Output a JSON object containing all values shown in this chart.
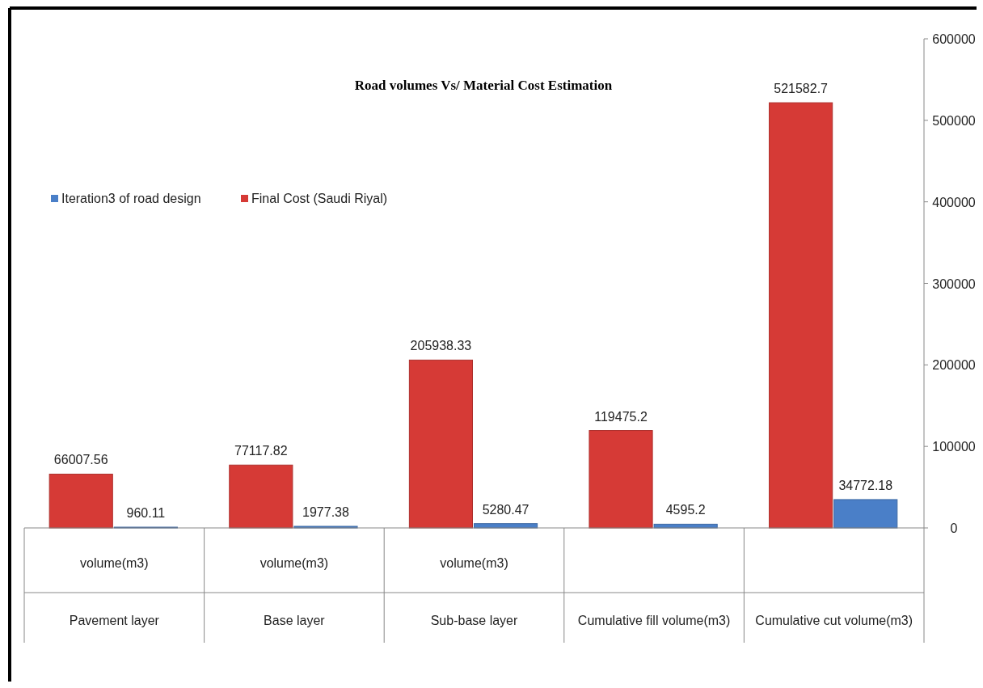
{
  "chart_data": {
    "type": "bar",
    "title": "Road volumes Vs/  Material Cost Estimation",
    "categories": [
      "volume(m3)\nPavement layer",
      "volume(m3)\nBase layer",
      "volume(m3)\nSub-base layer",
      "\nCumulative fill volume(m3)",
      "\nCumulative cut volume(m3)"
    ],
    "series": [
      {
        "name": "Iteration3 of road design",
        "color": "#4a7fc8",
        "values": [
          960.11,
          1977.38,
          5280.47,
          4595.2,
          34772.18
        ]
      },
      {
        "name": "Final Cost (Saudi Riyal)",
        "color": "#d63a36",
        "values": [
          66007.56,
          77117.82,
          205938.33,
          119475.2,
          521582.7
        ]
      }
    ],
    "ylim": [
      0,
      600000
    ],
    "yticks": [
      0,
      100000,
      200000,
      300000,
      400000,
      500000,
      600000
    ],
    "grid": false,
    "legend": "top left",
    "data_labels": true
  }
}
